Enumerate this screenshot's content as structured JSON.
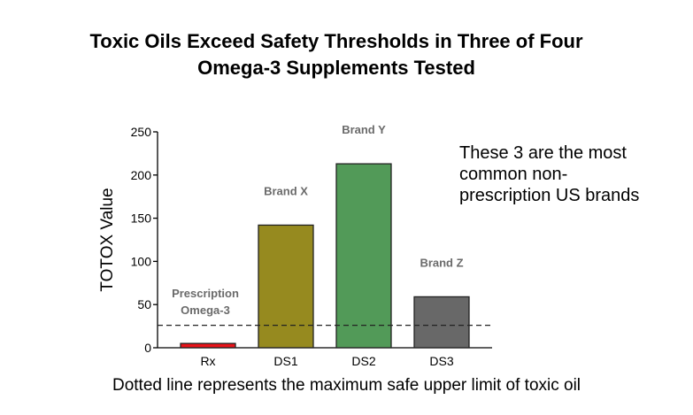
{
  "chart_data": {
    "type": "bar",
    "title": "Toxic Oils Exceed Safety Thresholds in Three of Four Omega-3 Supplements Tested",
    "title_lines": [
      "Toxic Oils Exceed Safety Thresholds in Three of Four",
      "Omega-3 Supplements Tested"
    ],
    "xlabel": "",
    "ylabel": "TOTOX Value",
    "ylim": [
      0,
      250
    ],
    "yticks": [
      0,
      50,
      100,
      150,
      200,
      250
    ],
    "categories": [
      "Rx",
      "DS1",
      "DS2",
      "DS3"
    ],
    "values": [
      5,
      142,
      213,
      59
    ],
    "bar_labels": [
      [
        "Prescription",
        "Omega-3"
      ],
      [
        "Brand X"
      ],
      [
        "Brand Y"
      ],
      [
        "Brand Z"
      ]
    ],
    "colors": [
      "#e8141a",
      "#968a1f",
      "#529a58",
      "#686868"
    ],
    "threshold": 26,
    "annotation": "These 3 are the most common non-prescription US brands",
    "annotation_lines": [
      "These 3 are the most",
      "common non-",
      "prescription US brands"
    ],
    "caption": "Dotted line represents the maximum safe upper limit of toxic oil",
    "grid": false,
    "legend": "none"
  }
}
